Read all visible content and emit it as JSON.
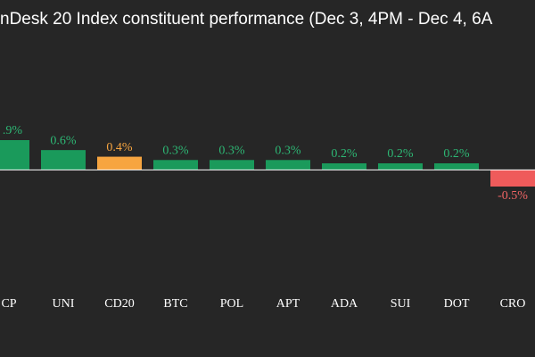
{
  "chart_data": {
    "type": "bar",
    "title": "nDesk 20 Index constituent performance (Dec 3, 4PM - Dec 4, 6A",
    "categories": [
      "CP",
      "UNI",
      "CD20",
      "BTC",
      "POL",
      "APT",
      "ADA",
      "SUI",
      "DOT",
      "CRO"
    ],
    "values": [
      0.9,
      0.6,
      0.4,
      0.3,
      0.3,
      0.3,
      0.2,
      0.2,
      0.2,
      -0.5
    ],
    "value_labels": [
      ".9%",
      "0.6%",
      "0.4%",
      "0.3%",
      "0.3%",
      "0.3%",
      "0.2%",
      "0.2%",
      "0.2%",
      "-0.5%"
    ],
    "colors": [
      "#1a9a5b",
      "#1a9a5b",
      "#f7a540",
      "#1a9a5b",
      "#1a9a5b",
      "#1a9a5b",
      "#1a9a5b",
      "#1a9a5b",
      "#1a9a5b",
      "#ef5b5b"
    ],
    "label_colors": [
      "#2db774",
      "#2db774",
      "#f7a540",
      "#2db774",
      "#2db774",
      "#2db774",
      "#2db774",
      "#2db774",
      "#2db774",
      "#f06464"
    ]
  }
}
